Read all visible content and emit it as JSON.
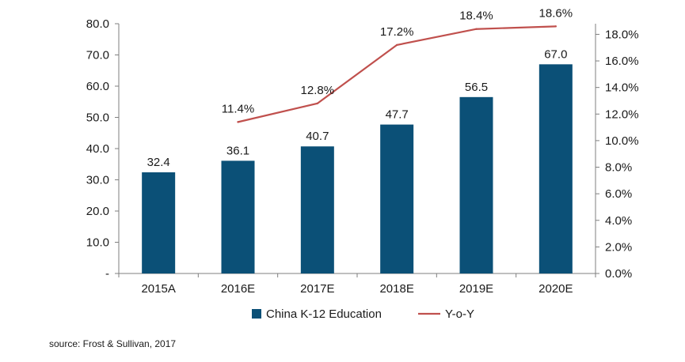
{
  "chart_data": {
    "type": "bar",
    "categories": [
      "2015A",
      "2016E",
      "2017E",
      "2018E",
      "2019E",
      "2020E"
    ],
    "series": [
      {
        "name": "China K-12 Education",
        "kind": "bar",
        "axis": "left",
        "values": [
          32.4,
          36.1,
          40.7,
          47.7,
          56.5,
          67.0
        ],
        "value_labels": [
          "32.4",
          "36.1",
          "40.7",
          "47.7",
          "56.5",
          "67.0"
        ],
        "color": "#0B5077"
      },
      {
        "name": "Y-o-Y",
        "kind": "line",
        "axis": "right",
        "values": [
          null,
          11.4,
          12.8,
          17.2,
          18.4,
          18.6
        ],
        "value_labels": [
          "",
          "11.4%",
          "12.8%",
          "17.2%",
          "18.4%",
          "18.6%"
        ],
        "color": "#C0504D"
      }
    ],
    "y_left": {
      "ylim": [
        0,
        80
      ],
      "ticks": [
        0,
        10,
        20,
        30,
        40,
        50,
        60,
        70,
        80
      ],
      "tick_labels": [
        "-",
        "10.0",
        "20.0",
        "30.0",
        "40.0",
        "50.0",
        "60.0",
        "70.0",
        "80.0"
      ]
    },
    "y_right": {
      "ylim": [
        0,
        18.8
      ],
      "ticks": [
        0,
        2,
        4,
        6,
        8,
        10,
        12,
        14,
        16,
        18
      ],
      "tick_labels": [
        "0.0%",
        "2.0%",
        "4.0%",
        "6.0%",
        "8.0%",
        "10.0%",
        "12.0%",
        "14.0%",
        "16.0%",
        "18.0%"
      ]
    },
    "title": "",
    "xlabel": "",
    "ylabel": "",
    "grid": false,
    "legend_position": "bottom"
  },
  "source_note": "source: Frost & Sullivan, 2017"
}
